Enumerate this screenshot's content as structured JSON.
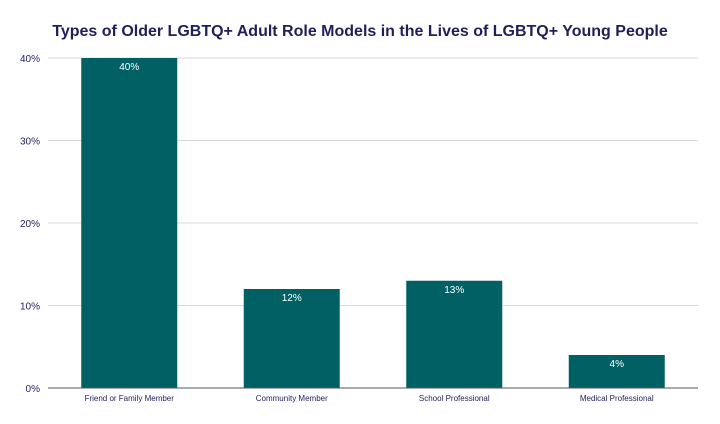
{
  "chart_data": {
    "type": "bar",
    "title": "Types of Older LGBTQ+ Adult Role Models in the Lives of LGBTQ+ Young People",
    "xlabel": "",
    "ylabel": "",
    "categories": [
      "Friend or Family Member",
      "Community Member",
      "School Professional",
      "Medical Professional"
    ],
    "values": [
      40,
      12,
      13,
      4
    ],
    "data_labels": [
      "40%",
      "12%",
      "13%",
      "4%"
    ],
    "yticks": [
      0,
      10,
      20,
      30,
      40
    ],
    "ytick_labels": [
      "0%",
      "10%",
      "20%",
      "30%",
      "40%"
    ],
    "ylim": [
      0,
      40
    ],
    "grid": true,
    "legend": "none",
    "colors": {
      "bar": "#006064",
      "title": "#1f1f5c",
      "grid": "#d9d9d9",
      "axis": "#555555",
      "label": "#ffffff"
    }
  }
}
